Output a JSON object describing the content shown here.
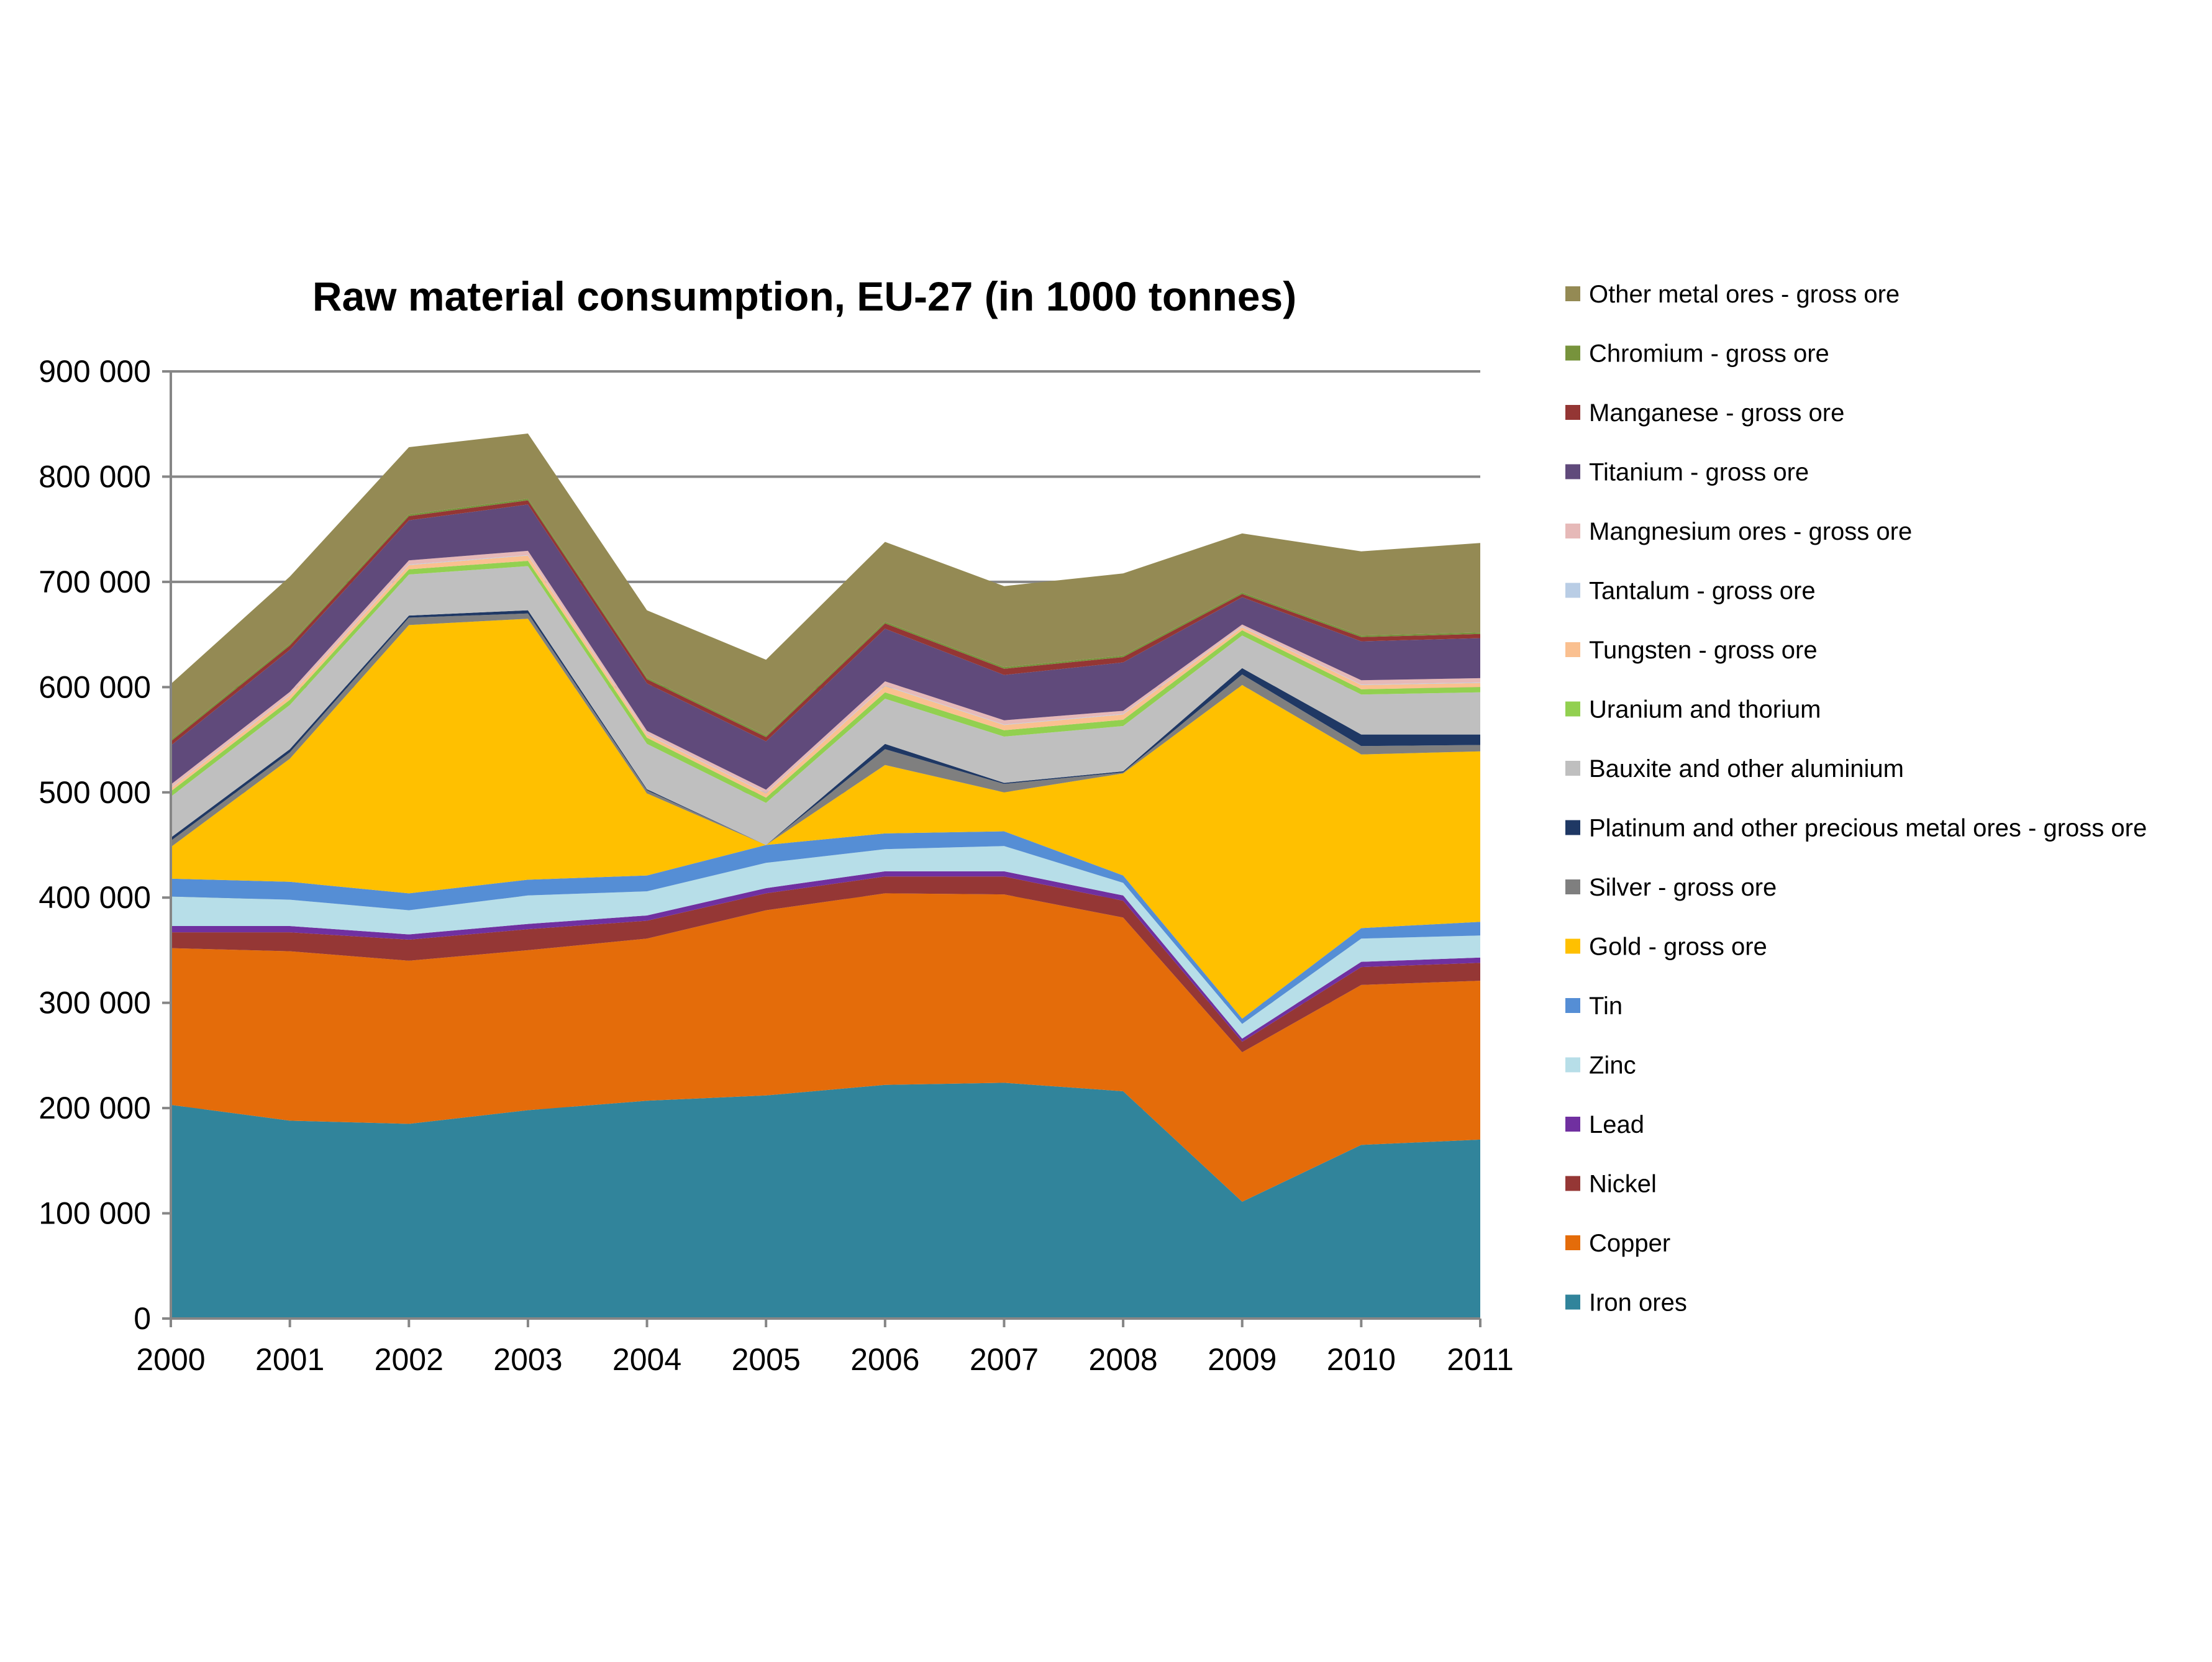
{
  "chart_data": {
    "type": "area",
    "stacked": true,
    "title": "Raw material consumption, EU-27 (in 1000 tonnes)",
    "xlabel": "",
    "ylabel": "",
    "x": [
      "2000",
      "2001",
      "2002",
      "2003",
      "2004",
      "2005",
      "2006",
      "2007",
      "2008",
      "2009",
      "2010",
      "2011"
    ],
    "ylim": [
      0,
      900000
    ],
    "yticks": [
      {
        "value": 0,
        "label": "0"
      },
      {
        "value": 100000,
        "label": "100 000"
      },
      {
        "value": 200000,
        "label": "200 000"
      },
      {
        "value": 300000,
        "label": "300 000"
      },
      {
        "value": 400000,
        "label": "400 000"
      },
      {
        "value": 500000,
        "label": "500 000"
      },
      {
        "value": 600000,
        "label": "600 000"
      },
      {
        "value": 700000,
        "label": "700 000"
      },
      {
        "value": 800000,
        "label": "800 000"
      },
      {
        "value": 900000,
        "label": "900 000"
      }
    ],
    "grid": true,
    "legend_position": "right",
    "series": [
      {
        "name": "Iron ores",
        "color": "#31849B",
        "values": [
          203000,
          188000,
          185000,
          198000,
          207000,
          212000,
          222000,
          224000,
          216000,
          111000,
          165000,
          170000
        ]
      },
      {
        "name": "Copper",
        "color": "#E46C0A",
        "values": [
          149000,
          161000,
          155000,
          152000,
          154000,
          176000,
          182000,
          179000,
          165000,
          142000,
          152000,
          151000
        ]
      },
      {
        "name": "Nickel",
        "color": "#953735",
        "values": [
          15000,
          18000,
          20000,
          20000,
          17000,
          16000,
          16000,
          17000,
          16000,
          10000,
          17000,
          17000
        ]
      },
      {
        "name": "Lead",
        "color": "#7030A0",
        "values": [
          6000,
          6000,
          5000,
          5000,
          5000,
          5000,
          5000,
          5000,
          5000,
          3000,
          5000,
          5000
        ]
      },
      {
        "name": "Zinc",
        "color": "#B7DEE8",
        "values": [
          28000,
          25000,
          23000,
          27000,
          23000,
          24000,
          21000,
          24000,
          12000,
          14000,
          22000,
          21000
        ]
      },
      {
        "name": "Tin",
        "color": "#558ED5",
        "values": [
          17000,
          17000,
          16000,
          15000,
          15000,
          17000,
          15000,
          14000,
          7000,
          5000,
          10000,
          13000
        ]
      },
      {
        "name": "Gold - gross ore",
        "color": "#FFC000",
        "values": [
          30000,
          117000,
          255000,
          248000,
          78000,
          0,
          65000,
          37000,
          97000,
          317000,
          165000,
          162000
        ]
      },
      {
        "name": "Silver - gross ore",
        "color": "#7F7F7F",
        "values": [
          6000,
          6000,
          7000,
          5000,
          3000,
          0,
          15000,
          8000,
          1000,
          10000,
          8000,
          6000
        ]
      },
      {
        "name": "Platinum and other precious metal ores - gross ore",
        "color": "#1F3864",
        "values": [
          3000,
          3000,
          2000,
          3000,
          1000,
          0,
          5000,
          1000,
          1000,
          6000,
          11000,
          10000
        ]
      },
      {
        "name": "Bauxite and other aluminium",
        "color": "#BFBFBF",
        "values": [
          39000,
          42000,
          39000,
          42000,
          43000,
          40000,
          43000,
          44000,
          43000,
          31000,
          38000,
          40000
        ]
      },
      {
        "name": "Uranium and thorium",
        "color": "#92D050",
        "values": [
          5000,
          5000,
          5000,
          5000,
          6000,
          5000,
          6000,
          6000,
          6000,
          5000,
          5000,
          5000
        ]
      },
      {
        "name": "Tungsten - gross ore",
        "color": "#FAC090",
        "values": [
          3000,
          4000,
          4000,
          5000,
          3000,
          4000,
          6000,
          5000,
          5000,
          3000,
          4000,
          4000
        ]
      },
      {
        "name": "Tantalum - gross ore",
        "color": "#B9CDE5",
        "values": [
          500,
          500,
          500,
          500,
          500,
          500,
          500,
          500,
          500,
          500,
          500,
          500
        ]
      },
      {
        "name": "Mangnesium ores - gross ore",
        "color": "#E6B9B8",
        "values": [
          3000,
          3000,
          4000,
          4000,
          3000,
          3000,
          4000,
          4000,
          3000,
          2000,
          4000,
          4000
        ]
      },
      {
        "name": "Titanium - gross ore",
        "color": "#604A7B",
        "values": [
          37000,
          40000,
          38000,
          44000,
          45000,
          46000,
          50000,
          43000,
          46000,
          26000,
          37000,
          38000
        ]
      },
      {
        "name": "Manganese - gross ore",
        "color": "#943634",
        "values": [
          4000,
          4000,
          4000,
          4000,
          4000,
          4000,
          5000,
          6000,
          5000,
          3000,
          4000,
          4000
        ]
      },
      {
        "name": "Chromium - gross ore",
        "color": "#77933C",
        "values": [
          1500,
          1500,
          1500,
          1500,
          1500,
          1500,
          1500,
          1500,
          1500,
          1500,
          1500,
          1500
        ]
      },
      {
        "name": "Other metal ores - gross ore",
        "color": "#948A54",
        "values": [
          53000,
          64000,
          64000,
          62000,
          64000,
          72000,
          76000,
          77000,
          78000,
          56000,
          80000,
          85000
        ]
      }
    ]
  }
}
